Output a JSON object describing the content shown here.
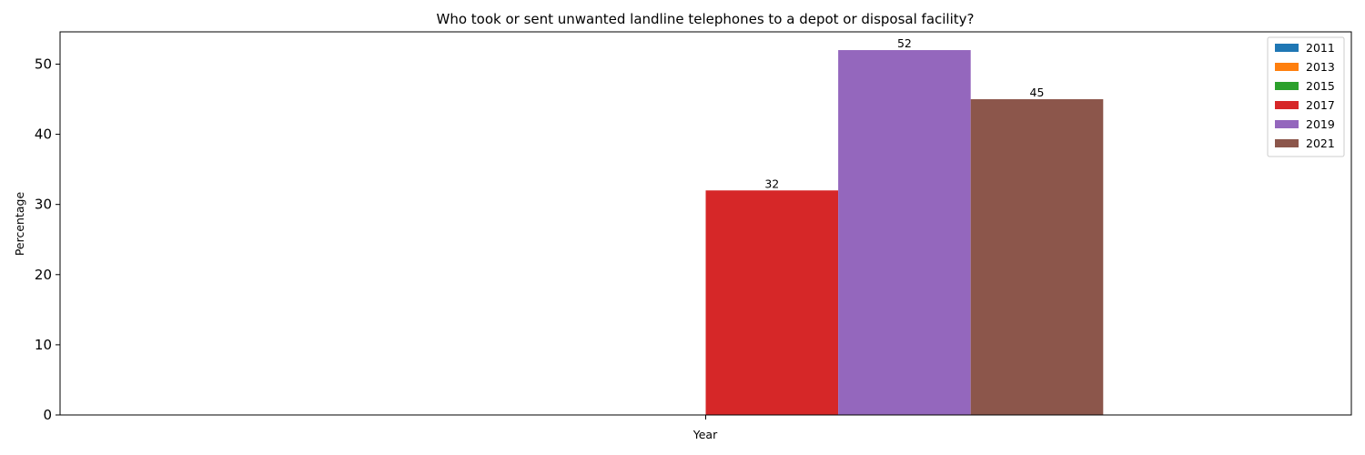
{
  "chart_data": {
    "type": "bar",
    "title": "Who took or sent unwanted landline telephones to a depot or disposal facility?",
    "xlabel": "Year",
    "ylabel": "Percentage",
    "ylim": [
      0,
      54.6
    ],
    "yticks": [
      0,
      10,
      20,
      30,
      40,
      50
    ],
    "grid": false,
    "legend_position": "top-right",
    "series": [
      {
        "name": "2011",
        "value": null,
        "color": "#1f77b4"
      },
      {
        "name": "2013",
        "value": null,
        "color": "#ff7f0e"
      },
      {
        "name": "2015",
        "value": null,
        "color": "#2ca02c"
      },
      {
        "name": "2017",
        "value": 32,
        "color": "#d62728"
      },
      {
        "name": "2019",
        "value": 52,
        "color": "#9467bd"
      },
      {
        "name": "2021",
        "value": 45,
        "color": "#8c564b"
      }
    ]
  }
}
